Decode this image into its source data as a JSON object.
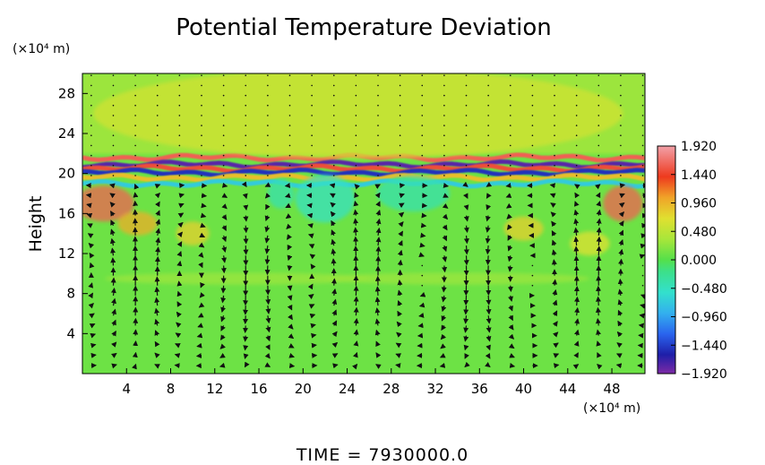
{
  "chart_data": {
    "type": "heatmap",
    "title": "Potential Temperature Deviation",
    "xlabel": "",
    "ylabel": "Height",
    "x_unit": "(×10⁴ m)",
    "y_unit": "(×10⁴ m)",
    "xlim": [
      0,
      51
    ],
    "ylim": [
      0,
      30
    ],
    "x_ticks": [
      4,
      8,
      12,
      16,
      20,
      24,
      28,
      32,
      36,
      40,
      44,
      48
    ],
    "x_tick_labels": [
      "4",
      "8",
      "12",
      "16",
      "20",
      "24",
      "28",
      "32",
      "36",
      "40",
      "44",
      "48"
    ],
    "y_ticks": [
      4,
      8,
      12,
      16,
      20,
      24,
      28
    ],
    "y_tick_labels": [
      "4",
      "8",
      "12",
      "16",
      "20",
      "24",
      "28"
    ],
    "grid": false,
    "overlay": "velocity vectors",
    "colorbar": {
      "placement": "right",
      "min": -1.92,
      "max": 1.92,
      "tick_values": [
        1.92,
        1.44,
        0.96,
        0.48,
        0.0,
        -0.48,
        -0.96,
        -1.44,
        -1.92
      ],
      "tick_labels": [
        "1.920",
        "1.440",
        "0.960",
        "0.480",
        "0.000",
        "−0.480",
        "−0.960",
        "−1.440",
        "−1.920"
      ],
      "colormap": [
        {
          "value": -1.92,
          "color": "#7d2aa6"
        },
        {
          "value": -1.6,
          "color": "#1e1ea8"
        },
        {
          "value": -1.25,
          "color": "#2a64ee"
        },
        {
          "value": -0.9,
          "color": "#33b0ee"
        },
        {
          "value": -0.55,
          "color": "#33e0cc"
        },
        {
          "value": -0.2,
          "color": "#3ce08a"
        },
        {
          "value": 0.0,
          "color": "#55e04a"
        },
        {
          "value": 0.35,
          "color": "#a8e63a"
        },
        {
          "value": 0.7,
          "color": "#e0e030"
        },
        {
          "value": 1.05,
          "color": "#f0a428"
        },
        {
          "value": 1.4,
          "color": "#ee3a1e"
        },
        {
          "value": 1.92,
          "color": "#f2a0a8"
        }
      ]
    },
    "field_levels": {
      "background": 0.1,
      "upper_region": 0.3,
      "inversion_layer_height": 20,
      "band_values": [
        1.6,
        -1.8,
        1.5,
        -1.5,
        0.9,
        -0.7
      ],
      "band_heights": [
        21.6,
        20.9,
        20.5,
        20.1,
        19.6,
        19.0
      ]
    }
  },
  "time_label": "TIME = 7930000.0"
}
